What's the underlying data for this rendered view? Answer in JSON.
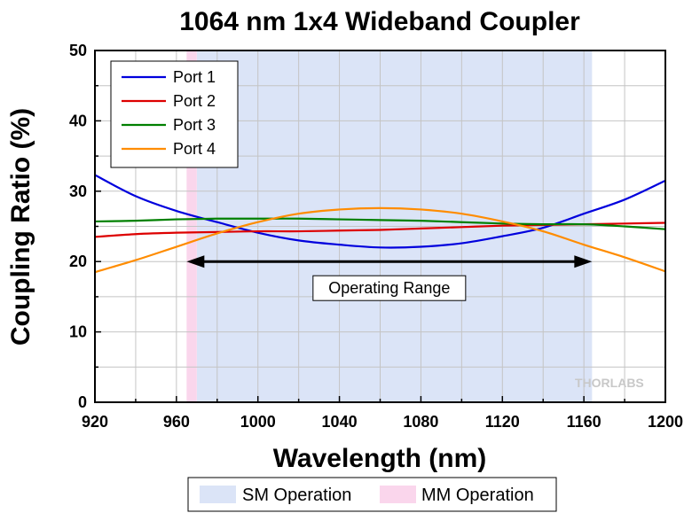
{
  "chart_data": {
    "type": "line",
    "title": "1064 nm 1x4 Wideband Coupler",
    "xlabel": "Wavelength (nm)",
    "ylabel": "Coupling Ratio (%)",
    "xlim": [
      920,
      1200
    ],
    "ylim": [
      0,
      50
    ],
    "xticks": [
      920,
      960,
      1000,
      1040,
      1080,
      1120,
      1160,
      1200
    ],
    "yticks": [
      0,
      10,
      20,
      30,
      40,
      50
    ],
    "grid": true,
    "legend_position": "top-left",
    "series": [
      {
        "name": "Port 1",
        "color": "#0000dd",
        "x": [
          920,
          940,
          960,
          980,
          1000,
          1020,
          1040,
          1060,
          1080,
          1100,
          1120,
          1140,
          1160,
          1180,
          1200
        ],
        "y": [
          32.3,
          29.3,
          27.2,
          25.6,
          24.1,
          23.0,
          22.4,
          22.0,
          22.1,
          22.6,
          23.6,
          24.8,
          26.8,
          28.8,
          31.5
        ]
      },
      {
        "name": "Port 2",
        "color": "#dd0000",
        "x": [
          920,
          940,
          960,
          980,
          1000,
          1020,
          1040,
          1060,
          1080,
          1100,
          1120,
          1140,
          1160,
          1180,
          1200
        ],
        "y": [
          23.5,
          23.9,
          24.1,
          24.2,
          24.3,
          24.3,
          24.4,
          24.5,
          24.7,
          24.9,
          25.1,
          25.2,
          25.3,
          25.4,
          25.5
        ]
      },
      {
        "name": "Port 3",
        "color": "#008000",
        "x": [
          920,
          940,
          960,
          980,
          1000,
          1020,
          1040,
          1060,
          1080,
          1100,
          1120,
          1140,
          1160,
          1180,
          1200
        ],
        "y": [
          25.7,
          25.8,
          26.0,
          26.1,
          26.1,
          26.1,
          26.0,
          25.9,
          25.8,
          25.6,
          25.4,
          25.3,
          25.3,
          25.0,
          24.6
        ]
      },
      {
        "name": "Port 4",
        "color": "#ff8c00",
        "x": [
          920,
          940,
          960,
          980,
          1000,
          1020,
          1040,
          1060,
          1080,
          1100,
          1120,
          1140,
          1160,
          1180,
          1200
        ],
        "y": [
          18.5,
          20.2,
          22.1,
          24.0,
          25.6,
          26.8,
          27.4,
          27.6,
          27.4,
          26.8,
          25.7,
          24.3,
          22.4,
          20.6,
          18.6
        ]
      }
    ],
    "regions": [
      {
        "label": "SM Operation",
        "color": "#dbe4f7",
        "x": [
          970,
          1164
        ]
      },
      {
        "label": "MM Operation",
        "color": "#fad6ec",
        "x": [
          965,
          970
        ]
      }
    ],
    "annotation": {
      "text": "Operating Range",
      "x_start": 965,
      "x_end": 1164,
      "y": 20
    },
    "logo": "THORLABS"
  }
}
